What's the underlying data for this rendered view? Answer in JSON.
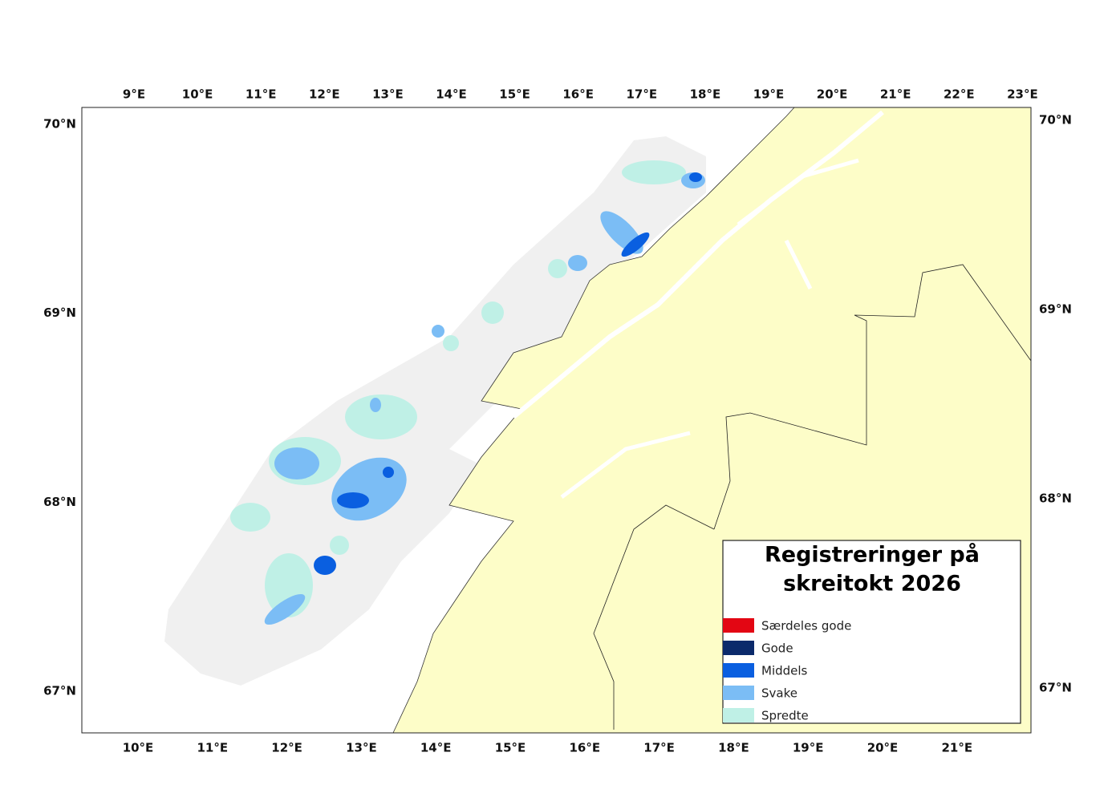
{
  "map": {
    "top_ticks": [
      "9°E",
      "10°E",
      "11°E",
      "12°E",
      "13°E",
      "14°E",
      "15°E",
      "16°E",
      "17°E",
      "18°E",
      "19°E",
      "20°E",
      "21°E",
      "22°E",
      "23°E"
    ],
    "bottom_ticks": [
      "10°E",
      "11°E",
      "12°E",
      "13°E",
      "14°E",
      "15°E",
      "16°E",
      "17°E",
      "18°E",
      "19°E",
      "20°E",
      "21°E"
    ],
    "left_ticks": [
      "70°N",
      "69°N",
      "68°N",
      "67°N"
    ],
    "right_ticks": [
      "70°N",
      "69°N",
      "68°N",
      "67°N"
    ]
  },
  "legend": {
    "title_lines": [
      "Registreringer på",
      "skreitokt 2026"
    ],
    "items": [
      {
        "label": "Særdeles gode",
        "color": "#e30613"
      },
      {
        "label": "Gode",
        "color": "#0b2a6b"
      },
      {
        "label": "Middels",
        "color": "#0a5fe0"
      },
      {
        "label": "Svake",
        "color": "#7bbdf5"
      },
      {
        "label": "Spredte",
        "color": "#bff0e6"
      }
    ]
  }
}
